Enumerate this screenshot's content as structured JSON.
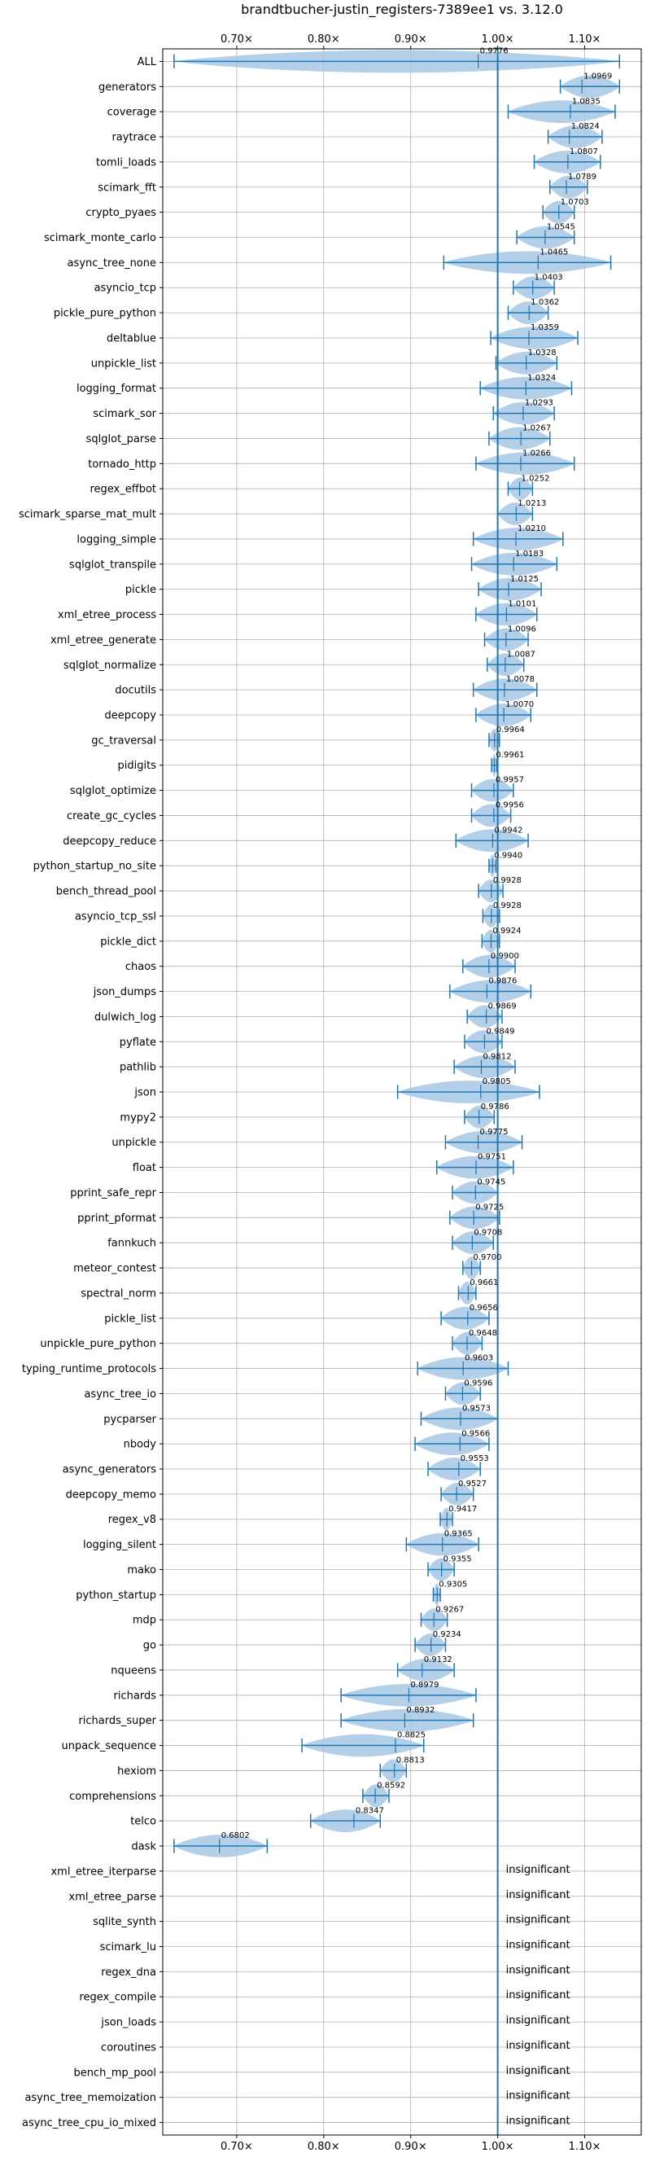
{
  "chart_data": {
    "type": "violin",
    "title": "brandtbucher-justin_registers-7389ee1 vs. 3.12.0",
    "xlabel": "",
    "ylabel": "",
    "x_ticks": [
      "0.70×",
      "0.80×",
      "0.90×",
      "1.00×",
      "1.10×"
    ],
    "x_tick_values": [
      0.7,
      0.8,
      0.9,
      1.0,
      1.1
    ],
    "xlim": [
      0.615,
      1.165
    ],
    "reference_line": 1.0,
    "grid": true,
    "colors": {
      "violin": "#a6c8e4",
      "line": "#1f77b4",
      "grid": "#b0b0b0"
    },
    "insignificant_label": "insignificant",
    "benchmarks": [
      {
        "name": "ALL",
        "value": 0.9776,
        "label": "0.9776",
        "min": 0.628,
        "max": 1.14
      },
      {
        "name": "generators",
        "value": 1.0969,
        "label": "1.0969",
        "min": 1.072,
        "max": 1.14
      },
      {
        "name": "coverage",
        "value": 1.0835,
        "label": "1.0835",
        "min": 1.012,
        "max": 1.135
      },
      {
        "name": "raytrace",
        "value": 1.0824,
        "label": "1.0824",
        "min": 1.058,
        "max": 1.12
      },
      {
        "name": "tomli_loads",
        "value": 1.0807,
        "label": "1.0807",
        "min": 1.042,
        "max": 1.118
      },
      {
        "name": "scimark_fft",
        "value": 1.0789,
        "label": "1.0789",
        "min": 1.06,
        "max": 1.103
      },
      {
        "name": "crypto_pyaes",
        "value": 1.0703,
        "label": "1.0703",
        "min": 1.052,
        "max": 1.088
      },
      {
        "name": "scimark_monte_carlo",
        "value": 1.0545,
        "label": "1.0545",
        "min": 1.022,
        "max": 1.088
      },
      {
        "name": "async_tree_none",
        "value": 1.0465,
        "label": "1.0465",
        "min": 0.938,
        "max": 1.13
      },
      {
        "name": "asyncio_tcp",
        "value": 1.0403,
        "label": "1.0403",
        "min": 1.018,
        "max": 1.065
      },
      {
        "name": "pickle_pure_python",
        "value": 1.0362,
        "label": "1.0362",
        "min": 1.012,
        "max": 1.058
      },
      {
        "name": "deltablue",
        "value": 1.0359,
        "label": "1.0359",
        "min": 0.992,
        "max": 1.092
      },
      {
        "name": "unpickle_list",
        "value": 1.0328,
        "label": "1.0328",
        "min": 0.998,
        "max": 1.068
      },
      {
        "name": "logging_format",
        "value": 1.0324,
        "label": "1.0324",
        "min": 0.98,
        "max": 1.085
      },
      {
        "name": "scimark_sor",
        "value": 1.0293,
        "label": "1.0293",
        "min": 0.995,
        "max": 1.065
      },
      {
        "name": "sqlglot_parse",
        "value": 1.0267,
        "label": "1.0267",
        "min": 0.99,
        "max": 1.06
      },
      {
        "name": "tornado_http",
        "value": 1.0266,
        "label": "1.0266",
        "min": 0.975,
        "max": 1.088
      },
      {
        "name": "regex_effbot",
        "value": 1.0252,
        "label": "1.0252",
        "min": 1.012,
        "max": 1.04
      },
      {
        "name": "scimark_sparse_mat_mult",
        "value": 1.0213,
        "label": "1.0213",
        "min": 1.0,
        "max": 1.04
      },
      {
        "name": "logging_simple",
        "value": 1.021,
        "label": "1.0210",
        "min": 0.972,
        "max": 1.075
      },
      {
        "name": "sqlglot_transpile",
        "value": 1.0183,
        "label": "1.0183",
        "min": 0.97,
        "max": 1.068
      },
      {
        "name": "pickle",
        "value": 1.0125,
        "label": "1.0125",
        "min": 0.978,
        "max": 1.05
      },
      {
        "name": "xml_etree_process",
        "value": 1.0101,
        "label": "1.0101",
        "min": 0.975,
        "max": 1.045
      },
      {
        "name": "xml_etree_generate",
        "value": 1.0096,
        "label": "1.0096",
        "min": 0.985,
        "max": 1.035
      },
      {
        "name": "sqlglot_normalize",
        "value": 1.0087,
        "label": "1.0087",
        "min": 0.988,
        "max": 1.03
      },
      {
        "name": "docutils",
        "value": 1.0078,
        "label": "1.0078",
        "min": 0.972,
        "max": 1.045
      },
      {
        "name": "deepcopy",
        "value": 1.007,
        "label": "1.0070",
        "min": 0.975,
        "max": 1.038
      },
      {
        "name": "gc_traversal",
        "value": 0.9964,
        "label": "0.9964",
        "min": 0.99,
        "max": 1.002
      },
      {
        "name": "pidigits",
        "value": 0.9961,
        "label": "0.9961",
        "min": 0.993,
        "max": 0.999
      },
      {
        "name": "sqlglot_optimize",
        "value": 0.9957,
        "label": "0.9957",
        "min": 0.97,
        "max": 1.018
      },
      {
        "name": "create_gc_cycles",
        "value": 0.9956,
        "label": "0.9956",
        "min": 0.97,
        "max": 1.015
      },
      {
        "name": "deepcopy_reduce",
        "value": 0.9942,
        "label": "0.9942",
        "min": 0.952,
        "max": 1.035
      },
      {
        "name": "python_startup_no_site",
        "value": 0.994,
        "label": "0.9940",
        "min": 0.99,
        "max": 0.998
      },
      {
        "name": "bench_thread_pool",
        "value": 0.9928,
        "label": "0.9928",
        "min": 0.978,
        "max": 1.006
      },
      {
        "name": "asyncio_tcp_ssl",
        "value": 0.9928,
        "label": "0.9928",
        "min": 0.983,
        "max": 1.002
      },
      {
        "name": "pickle_dict",
        "value": 0.9924,
        "label": "0.9924",
        "min": 0.982,
        "max": 1.002
      },
      {
        "name": "chaos",
        "value": 0.99,
        "label": "0.9900",
        "min": 0.96,
        "max": 1.02
      },
      {
        "name": "json_dumps",
        "value": 0.9876,
        "label": "0.9876",
        "min": 0.945,
        "max": 1.038
      },
      {
        "name": "dulwich_log",
        "value": 0.9869,
        "label": "0.9869",
        "min": 0.965,
        "max": 1.005
      },
      {
        "name": "pyflate",
        "value": 0.9849,
        "label": "0.9849",
        "min": 0.962,
        "max": 1.005
      },
      {
        "name": "pathlib",
        "value": 0.9812,
        "label": "0.9812",
        "min": 0.95,
        "max": 1.02
      },
      {
        "name": "json",
        "value": 0.9805,
        "label": "0.9805",
        "min": 0.885,
        "max": 1.048
      },
      {
        "name": "mypy2",
        "value": 0.9786,
        "label": "0.9786",
        "min": 0.962,
        "max": 0.996
      },
      {
        "name": "unpickle",
        "value": 0.9775,
        "label": "0.9775",
        "min": 0.94,
        "max": 1.028
      },
      {
        "name": "float",
        "value": 0.9751,
        "label": "0.9751",
        "min": 0.93,
        "max": 1.018
      },
      {
        "name": "pprint_safe_repr",
        "value": 0.9745,
        "label": "0.9745",
        "min": 0.948,
        "max": 1.0
      },
      {
        "name": "pprint_pformat",
        "value": 0.9725,
        "label": "0.9725",
        "min": 0.945,
        "max": 1.002
      },
      {
        "name": "fannkuch",
        "value": 0.9708,
        "label": "0.9708",
        "min": 0.948,
        "max": 0.995
      },
      {
        "name": "meteor_contest",
        "value": 0.97,
        "label": "0.9700",
        "min": 0.96,
        "max": 0.98
      },
      {
        "name": "spectral_norm",
        "value": 0.9661,
        "label": "0.9661",
        "min": 0.955,
        "max": 0.975
      },
      {
        "name": "pickle_list",
        "value": 0.9656,
        "label": "0.9656",
        "min": 0.935,
        "max": 0.99
      },
      {
        "name": "unpickle_pure_python",
        "value": 0.9648,
        "label": "0.9648",
        "min": 0.948,
        "max": 0.982
      },
      {
        "name": "typing_runtime_protocols",
        "value": 0.9603,
        "label": "0.9603",
        "min": 0.908,
        "max": 1.012
      },
      {
        "name": "async_tree_io",
        "value": 0.9596,
        "label": "0.9596",
        "min": 0.94,
        "max": 0.98
      },
      {
        "name": "pycparser",
        "value": 0.9573,
        "label": "0.9573",
        "min": 0.912,
        "max": 1.0
      },
      {
        "name": "nbody",
        "value": 0.9566,
        "label": "0.9566",
        "min": 0.905,
        "max": 0.99
      },
      {
        "name": "async_generators",
        "value": 0.9553,
        "label": "0.9553",
        "min": 0.92,
        "max": 0.98
      },
      {
        "name": "deepcopy_memo",
        "value": 0.9527,
        "label": "0.9527",
        "min": 0.935,
        "max": 0.972
      },
      {
        "name": "regex_v8",
        "value": 0.9417,
        "label": "0.9417",
        "min": 0.934,
        "max": 0.948
      },
      {
        "name": "logging_silent",
        "value": 0.9365,
        "label": "0.9365",
        "min": 0.895,
        "max": 0.978
      },
      {
        "name": "mako",
        "value": 0.9355,
        "label": "0.9355",
        "min": 0.92,
        "max": 0.95
      },
      {
        "name": "python_startup",
        "value": 0.9305,
        "label": "0.9305",
        "min": 0.926,
        "max": 0.934
      },
      {
        "name": "mdp",
        "value": 0.9267,
        "label": "0.9267",
        "min": 0.912,
        "max": 0.942
      },
      {
        "name": "go",
        "value": 0.9234,
        "label": "0.9234",
        "min": 0.905,
        "max": 0.94
      },
      {
        "name": "nqueens",
        "value": 0.9132,
        "label": "0.9132",
        "min": 0.885,
        "max": 0.95
      },
      {
        "name": "richards",
        "value": 0.8979,
        "label": "0.8979",
        "min": 0.82,
        "max": 0.975
      },
      {
        "name": "richards_super",
        "value": 0.8932,
        "label": "0.8932",
        "min": 0.82,
        "max": 0.972
      },
      {
        "name": "unpack_sequence",
        "value": 0.8825,
        "label": "0.8825",
        "min": 0.775,
        "max": 0.915
      },
      {
        "name": "hexiom",
        "value": 0.8813,
        "label": "0.8813",
        "min": 0.865,
        "max": 0.895
      },
      {
        "name": "comprehensions",
        "value": 0.8592,
        "label": "0.8592",
        "min": 0.845,
        "max": 0.875
      },
      {
        "name": "telco",
        "value": 0.8347,
        "label": "0.8347",
        "min": 0.785,
        "max": 0.865
      },
      {
        "name": "dask",
        "value": 0.6802,
        "label": "0.6802",
        "min": 0.628,
        "max": 0.735
      },
      {
        "name": "xml_etree_iterparse",
        "value": null,
        "label": "insignificant"
      },
      {
        "name": "xml_etree_parse",
        "value": null,
        "label": "insignificant"
      },
      {
        "name": "sqlite_synth",
        "value": null,
        "label": "insignificant"
      },
      {
        "name": "scimark_lu",
        "value": null,
        "label": "insignificant"
      },
      {
        "name": "regex_dna",
        "value": null,
        "label": "insignificant"
      },
      {
        "name": "regex_compile",
        "value": null,
        "label": "insignificant"
      },
      {
        "name": "json_loads",
        "value": null,
        "label": "insignificant"
      },
      {
        "name": "coroutines",
        "value": null,
        "label": "insignificant"
      },
      {
        "name": "bench_mp_pool",
        "value": null,
        "label": "insignificant"
      },
      {
        "name": "async_tree_memoization",
        "value": null,
        "label": "insignificant"
      },
      {
        "name": "async_tree_cpu_io_mixed",
        "value": null,
        "label": "insignificant"
      }
    ]
  }
}
